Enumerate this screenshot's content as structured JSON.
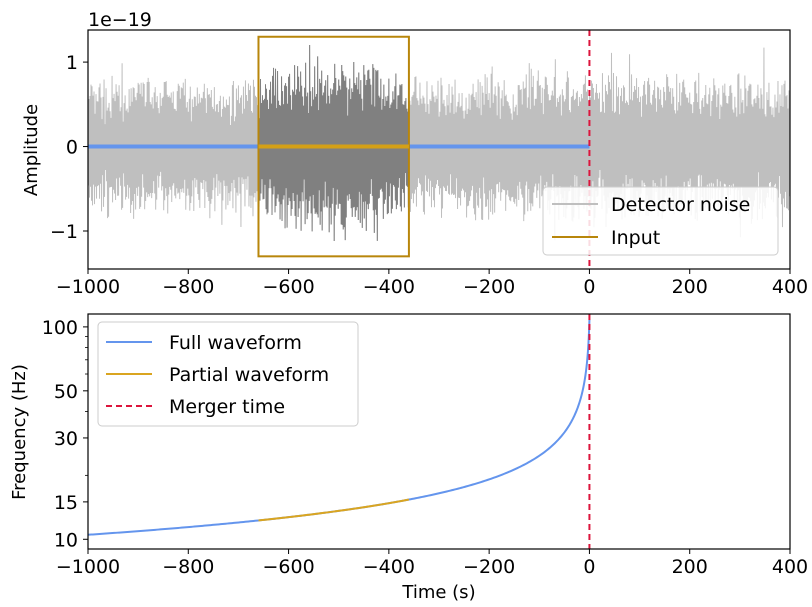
{
  "chart_data": [
    {
      "type": "line",
      "panel": "top",
      "offset_label": "1e−19",
      "ylabel": "Amplitude",
      "xlabel": "",
      "xlim": [
        -1000,
        400
      ],
      "ylim": [
        -1.45,
        1.38
      ],
      "xticks": [
        -1000,
        -800,
        -600,
        -400,
        -200,
        0,
        200,
        400
      ],
      "xtick_labels": [
        "−1000",
        "−800",
        "−600",
        "−400",
        "−200",
        "0",
        "200",
        "400"
      ],
      "yticks": [
        -1,
        0,
        1
      ],
      "ytick_labels": [
        "−1",
        "0",
        "1"
      ],
      "series": [
        {
          "name": "Detector noise",
          "color": "#bfbfbf",
          "envelope_x": [
            -1000,
            -900,
            -800,
            -700,
            -600,
            -500,
            -400,
            -300,
            -200,
            -100,
            0,
            100,
            200,
            300,
            400
          ],
          "envelope_amplitude": [
            0.85,
            0.9,
            0.9,
            0.85,
            1.05,
            1.2,
            0.95,
            0.85,
            0.95,
            0.95,
            1.0,
            0.95,
            0.9,
            0.95,
            0.95
          ]
        },
        {
          "name": "Input",
          "color": "#d4a017",
          "x_range": [
            -660,
            -360
          ],
          "box_ylim": [
            -1.3,
            1.3
          ],
          "highlight_color": "#808080"
        },
        {
          "name": "Signal",
          "color": "#6495ed",
          "x_range": [
            -1000,
            0
          ],
          "y": 0
        }
      ],
      "merger_time": 0,
      "legend": {
        "position": "lower-right",
        "entries": [
          {
            "label": "Detector noise",
            "color": "#bfbfbf"
          },
          {
            "label": "Input",
            "color": "#b8860b"
          }
        ]
      }
    },
    {
      "type": "line",
      "panel": "bottom",
      "xlabel": "Time (s)",
      "ylabel": "Frequency (Hz)",
      "xlim": [
        -1000,
        400
      ],
      "ylim": [
        9,
        115
      ],
      "log_y": true,
      "xticks": [
        -1000,
        -800,
        -600,
        -400,
        -200,
        0,
        200,
        400
      ],
      "xtick_labels": [
        "−1000",
        "−800",
        "−600",
        "−400",
        "−200",
        "0",
        "200",
        "400"
      ],
      "yticks": [
        10,
        15,
        30,
        50,
        100
      ],
      "ytick_labels": [
        "10",
        "15",
        "30",
        "50",
        "100"
      ],
      "series": [
        {
          "name": "Full waveform",
          "color": "#6495ed",
          "x": [
            -1000,
            -900,
            -800,
            -700,
            -660,
            -600,
            -500,
            -400,
            -360,
            -300,
            -200,
            -100,
            -50,
            -20,
            -5,
            0
          ],
          "y": [
            10.5,
            11.1,
            11.8,
            12.6,
            13.0,
            13.6,
            14.7,
            16.1,
            16.9,
            18.4,
            21.7,
            28.5,
            36,
            48,
            70,
            110
          ]
        },
        {
          "name": "Partial waveform",
          "color": "#daa520",
          "x": [
            -660,
            -600,
            -500,
            -400,
            -360
          ],
          "y": [
            13.0,
            13.6,
            14.7,
            16.1,
            16.9
          ]
        },
        {
          "name": "Merger time",
          "color": "#dc143c",
          "x": 0,
          "dashed": true
        }
      ],
      "legend": {
        "position": "upper-left",
        "entries": [
          {
            "label": "Full waveform",
            "color": "#6495ed",
            "dashed": false
          },
          {
            "label": "Partial waveform",
            "color": "#daa520",
            "dashed": false
          },
          {
            "label": "Merger time",
            "color": "#dc143c",
            "dashed": true
          }
        ]
      }
    }
  ]
}
